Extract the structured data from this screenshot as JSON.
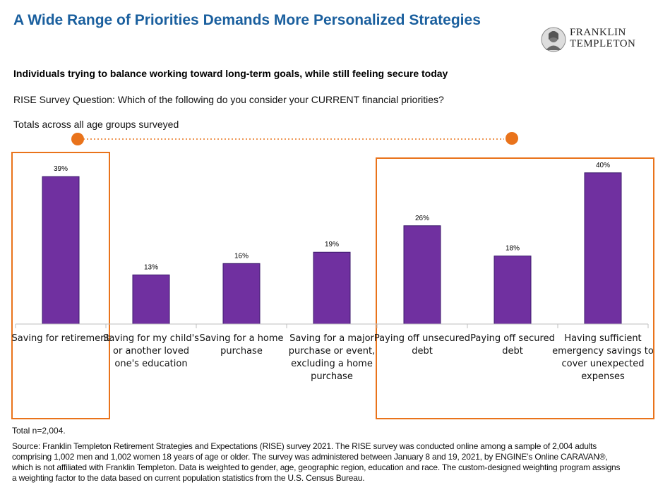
{
  "title": "A Wide Range of Priorities Demands More Personalized Strategies",
  "logo_text": [
    "FRANKLIN",
    "TEMPLETON"
  ],
  "subtitle": "Individuals trying to balance working toward long-term goals, while still feeling secure today",
  "question": "RISE Survey Question: Which of the following do you consider your CURRENT financial priorities?",
  "totals_note": "Totals across all age groups surveyed",
  "colors": {
    "bar": "#7030a0",
    "bar_edge": "#3b1a6b",
    "highlight": "#e9731b",
    "title": "#1a5f9e"
  },
  "chart_data": {
    "type": "bar",
    "categories": [
      "Saving for retirement",
      "Saving for my child's or another loved one's education",
      "Saving for a home purchase",
      "Saving for a major purchase or event, excluding a home purchase",
      "Paying off unsecured debt",
      "Paying off secured debt",
      "Having sufficient emergency savings to cover unexpected expenses"
    ],
    "category_lines": [
      [
        "Saving for retirement"
      ],
      [
        "Saving for my child's",
        "or another loved",
        "one's education"
      ],
      [
        "Saving for a home",
        "purchase"
      ],
      [
        "Saving for a major",
        "purchase or event,",
        "excluding a home",
        "purchase"
      ],
      [
        "Paying off unsecured",
        "debt"
      ],
      [
        "Paying off secured",
        "debt"
      ],
      [
        "Having sufficient",
        "emergency savings to",
        "cover unexpected",
        "expenses"
      ]
    ],
    "values": [
      39,
      13,
      16,
      19,
      26,
      18,
      40
    ],
    "data_labels": [
      "39%",
      "13%",
      "16%",
      "19%",
      "26%",
      "18%",
      "40%"
    ],
    "ylim": [
      0,
      45
    ],
    "highlight_groups": [
      [
        0
      ],
      [
        4,
        5,
        6
      ]
    ]
  },
  "footnote": "Total n=2,004.",
  "source_lines": [
    "Source: Franklin Templeton Retirement Strategies and Expectations (RISE) survey 2021. The RISE survey was conducted online among a sample of 2,004 adults",
    "comprising 1,002 men and 1,002 women 18 years of age or older. The survey was administered between January 8 and 19, 2021, by ENGINE’s Online CARAVAN®,",
    "which is not affiliated with Franklin Templeton. Data is weighted to gender, age, geographic region, education and race. The custom-designed weighting program assigns",
    "a weighting factor to the data based on current population statistics from the U.S. Census Bureau."
  ]
}
